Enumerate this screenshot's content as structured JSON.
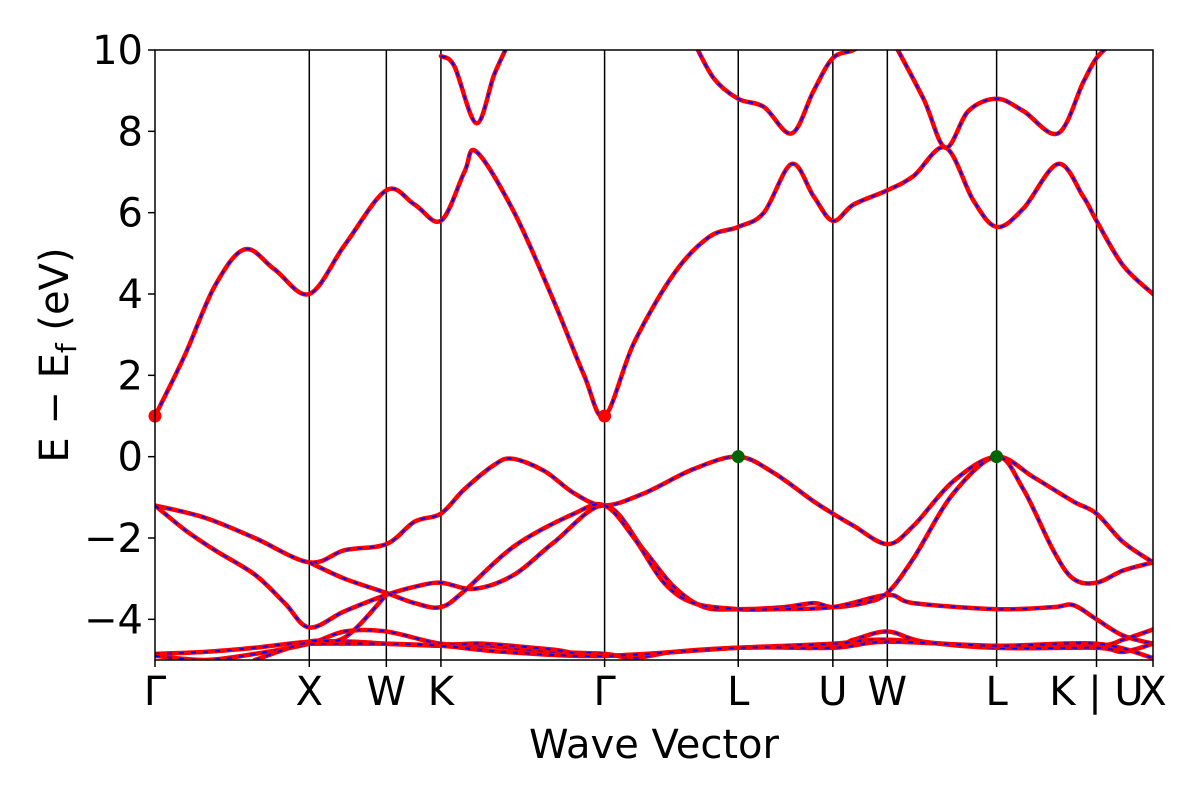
{
  "chart_data": {
    "type": "line",
    "title": "",
    "xlabel": "Wave Vector",
    "ylabel": "E − E",
    "ylabel_sub": "f",
    "ylabel_unit": " (eV)",
    "ylim": [
      -5,
      10
    ],
    "xlim": [
      0,
      1
    ],
    "yticks": [
      10,
      8,
      6,
      4,
      2,
      0,
      -2,
      -4
    ],
    "ytick_labels": [
      "10",
      "8",
      "6",
      "4",
      "2",
      "0",
      "−2",
      "−4"
    ],
    "kpoints": [
      {
        "label": "Γ",
        "x": 0.0
      },
      {
        "label": "X",
        "x": 0.1546
      },
      {
        "label": "W",
        "x": 0.2318
      },
      {
        "label": "K",
        "x": 0.2865
      },
      {
        "label": "Γ",
        "x": 0.4505
      },
      {
        "label": "L",
        "x": 0.5844
      },
      {
        "label": "U",
        "x": 0.6792
      },
      {
        "label": "W",
        "x": 0.7338
      },
      {
        "label": "L",
        "x": 0.8433
      },
      {
        "label": "K | U",
        "x": 0.9434
      },
      {
        "label": "X",
        "x": 1.0
      }
    ],
    "colors": {
      "primary": "#0000ff",
      "overlay": "#ff0000",
      "vbm": "#006400",
      "cbm": "#ff0000",
      "vline": "#000000"
    },
    "markers": [
      {
        "kind": "cbm",
        "x": 0.0,
        "y": 1.0
      },
      {
        "kind": "cbm",
        "x": 0.4505,
        "y": 1.0
      },
      {
        "kind": "vbm",
        "x": 0.5844,
        "y": 0.0
      },
      {
        "kind": "vbm",
        "x": 0.8433,
        "y": 0.0
      }
    ],
    "bands": [
      {
        "name": "",
        "points": [
          [
            0,
            1.0
          ],
          [
            0.03,
            2.5
          ],
          [
            0.06,
            4.2
          ],
          [
            0.09,
            5.1
          ],
          [
            0.12,
            4.6
          ],
          [
            0.1546,
            4.0
          ],
          [
            0.19,
            5.2
          ],
          [
            0.2318,
            6.55
          ],
          [
            0.26,
            6.2
          ],
          [
            0.2865,
            5.8
          ],
          [
            0.31,
            7.0
          ],
          [
            0.322,
            7.5
          ],
          [
            0.36,
            6.0
          ],
          [
            0.4,
            3.8
          ],
          [
            0.43,
            2.0
          ],
          [
            0.4505,
            1.0
          ],
          [
            0.48,
            2.8
          ],
          [
            0.52,
            4.5
          ],
          [
            0.555,
            5.4
          ],
          [
            0.5844,
            5.65
          ],
          [
            0.61,
            6.0
          ],
          [
            0.638,
            7.2
          ],
          [
            0.66,
            6.4
          ],
          [
            0.6792,
            5.8
          ],
          [
            0.7,
            6.2
          ],
          [
            0.7338,
            6.55
          ],
          [
            0.76,
            6.9
          ],
          [
            0.7921,
            7.6
          ],
          [
            0.82,
            6.3
          ],
          [
            0.8433,
            5.65
          ],
          [
            0.87,
            6.1
          ],
          [
            0.9048,
            7.2
          ],
          [
            0.93,
            6.4
          ],
          [
            0.9434,
            5.8
          ],
          [
            0.97,
            4.7
          ],
          [
            1.0,
            4.0
          ]
        ]
      },
      {
        "name": "",
        "points": [
          [
            0.2865,
            9.85
          ],
          [
            0.3,
            9.6
          ],
          [
            0.322,
            8.2
          ],
          [
            0.34,
            9.4
          ],
          [
            0.355,
            10.2
          ]
        ]
      },
      {
        "name": "",
        "points": [
          [
            0.54,
            10.2
          ],
          [
            0.56,
            9.3
          ],
          [
            0.5844,
            8.8
          ],
          [
            0.61,
            8.6
          ],
          [
            0.638,
            7.95
          ],
          [
            0.66,
            9.0
          ],
          [
            0.6792,
            9.8
          ],
          [
            0.7,
            10.0
          ],
          [
            0.72,
            10.3
          ]
        ]
      },
      {
        "name": "",
        "points": [
          [
            0.74,
            10.2
          ],
          [
            0.77,
            8.8
          ],
          [
            0.7921,
            7.6
          ],
          [
            0.815,
            8.5
          ],
          [
            0.8433,
            8.8
          ],
          [
            0.87,
            8.5
          ],
          [
            0.9048,
            7.95
          ],
          [
            0.93,
            9.2
          ],
          [
            0.9434,
            9.8
          ],
          [
            0.96,
            10.2
          ]
        ]
      },
      {
        "name": "",
        "points": [
          [
            0,
            -1.2
          ],
          [
            0.05,
            -1.5
          ],
          [
            0.1,
            -2.0
          ],
          [
            0.1546,
            -2.6
          ],
          [
            0.19,
            -2.3
          ],
          [
            0.2318,
            -2.15
          ],
          [
            0.26,
            -1.6
          ],
          [
            0.2865,
            -1.4
          ],
          [
            0.31,
            -0.8
          ],
          [
            0.34,
            -0.2
          ],
          [
            0.358,
            -0.05
          ],
          [
            0.39,
            -0.35
          ],
          [
            0.42,
            -0.9
          ],
          [
            0.4505,
            -1.2
          ],
          [
            0.49,
            -0.9
          ],
          [
            0.54,
            -0.3
          ],
          [
            0.5844,
            0.0
          ],
          [
            0.62,
            -0.4
          ],
          [
            0.66,
            -1.1
          ],
          [
            0.6792,
            -1.4
          ],
          [
            0.7,
            -1.7
          ],
          [
            0.7338,
            -2.15
          ],
          [
            0.76,
            -1.7
          ],
          [
            0.8,
            -0.6
          ],
          [
            0.8433,
            0.0
          ],
          [
            0.88,
            -0.5
          ],
          [
            0.92,
            -1.1
          ],
          [
            0.9434,
            -1.4
          ],
          [
            0.97,
            -2.1
          ],
          [
            1.0,
            -2.6
          ]
        ]
      },
      {
        "name": "",
        "points": [
          [
            0,
            -1.2
          ],
          [
            0.03,
            -1.8
          ],
          [
            0.06,
            -2.3
          ],
          [
            0.1,
            -2.9
          ],
          [
            0.13,
            -3.6
          ],
          [
            0.1546,
            -4.2
          ],
          [
            0.19,
            -3.8
          ],
          [
            0.2318,
            -3.4
          ],
          [
            0.26,
            -3.2
          ],
          [
            0.2865,
            -3.1
          ],
          [
            0.32,
            -3.25
          ],
          [
            0.36,
            -2.9
          ],
          [
            0.4,
            -2.1
          ],
          [
            0.4505,
            -1.2
          ],
          [
            0.49,
            -2.3
          ],
          [
            0.52,
            -3.2
          ],
          [
            0.55,
            -3.7
          ],
          [
            0.5844,
            -3.75
          ],
          [
            0.63,
            -3.7
          ],
          [
            0.66,
            -3.6
          ],
          [
            0.6792,
            -3.7
          ],
          [
            0.71,
            -3.6
          ],
          [
            0.7338,
            -3.35
          ],
          [
            0.76,
            -2.5
          ],
          [
            0.8,
            -0.9
          ],
          [
            0.8433,
            0.0
          ],
          [
            0.87,
            -0.8
          ],
          [
            0.9,
            -2.3
          ],
          [
            0.92,
            -3.0
          ],
          [
            0.9434,
            -3.1
          ],
          [
            0.97,
            -2.8
          ],
          [
            1.0,
            -2.6
          ]
        ]
      },
      {
        "name": "",
        "points": [
          [
            0.1546,
            -2.6
          ],
          [
            0.19,
            -3.0
          ],
          [
            0.2318,
            -3.35
          ],
          [
            0.26,
            -3.6
          ],
          [
            0.2865,
            -3.7
          ],
          [
            0.31,
            -3.3
          ],
          [
            0.36,
            -2.2
          ],
          [
            0.42,
            -1.4
          ],
          [
            0.4505,
            -1.2
          ],
          [
            0.48,
            -2.0
          ],
          [
            0.51,
            -3.1
          ],
          [
            0.54,
            -3.6
          ],
          [
            0.5844,
            -3.75
          ],
          [
            0.62,
            -3.75
          ],
          [
            0.6792,
            -3.7
          ],
          [
            0.7338,
            -3.4
          ],
          [
            0.76,
            -3.6
          ],
          [
            0.8433,
            -3.75
          ],
          [
            0.9,
            -3.7
          ],
          [
            0.92,
            -3.65
          ],
          [
            0.9434,
            -4.0
          ],
          [
            0.97,
            -4.4
          ],
          [
            1.0,
            -4.6
          ]
        ]
      },
      {
        "name": "",
        "points": [
          [
            0,
            -4.85
          ],
          [
            0.05,
            -4.8
          ],
          [
            0.1,
            -4.7
          ],
          [
            0.1546,
            -4.55
          ],
          [
            0.2,
            -4.55
          ],
          [
            0.2318,
            -4.6
          ],
          [
            0.2865,
            -4.65
          ],
          [
            0.33,
            -4.65
          ],
          [
            0.4,
            -4.8
          ],
          [
            0.4505,
            -4.85
          ],
          [
            0.48,
            -4.95
          ],
          [
            0.52,
            -4.8
          ],
          [
            0.5844,
            -4.7
          ],
          [
            0.6792,
            -4.65
          ],
          [
            0.7,
            -4.5
          ],
          [
            0.7338,
            -4.3
          ],
          [
            0.77,
            -4.55
          ],
          [
            0.8433,
            -4.7
          ],
          [
            0.9434,
            -4.65
          ],
          [
            0.97,
            -4.5
          ],
          [
            1.0,
            -4.25
          ]
        ]
      },
      {
        "name": "",
        "points": [
          [
            0,
            -4.9
          ],
          [
            0.05,
            -5.0
          ],
          [
            0.1,
            -4.85
          ],
          [
            0.1546,
            -4.6
          ],
          [
            0.19,
            -4.3
          ],
          [
            0.2318,
            -4.3
          ],
          [
            0.2865,
            -4.6
          ],
          [
            0.33,
            -4.6
          ],
          [
            0.4,
            -4.75
          ],
          [
            0.4505,
            -4.9
          ],
          [
            0.5844,
            -4.7
          ],
          [
            0.6792,
            -4.6
          ],
          [
            0.7338,
            -4.5
          ],
          [
            0.8433,
            -4.7
          ],
          [
            0.9434,
            -4.7
          ],
          [
            0.97,
            -4.8
          ],
          [
            1.0,
            -4.6
          ]
        ]
      },
      {
        "name": "",
        "points": [
          [
            0.1546,
            -4.6
          ],
          [
            0.2318,
            -4.6
          ],
          [
            0.2865,
            -4.65
          ],
          [
            0.35,
            -4.8
          ],
          [
            0.4505,
            -4.9
          ],
          [
            0.5844,
            -4.7
          ],
          [
            0.6792,
            -4.7
          ],
          [
            0.7338,
            -4.55
          ],
          [
            0.8433,
            -4.65
          ],
          [
            0.9434,
            -4.6
          ],
          [
            1.0,
            -4.95
          ]
        ]
      },
      {
        "name": "",
        "points": [
          [
            0.1,
            -5.0
          ],
          [
            0.1546,
            -4.55
          ],
          [
            0.19,
            -4.45
          ],
          [
            0.2318,
            -3.4
          ]
        ]
      }
    ]
  }
}
